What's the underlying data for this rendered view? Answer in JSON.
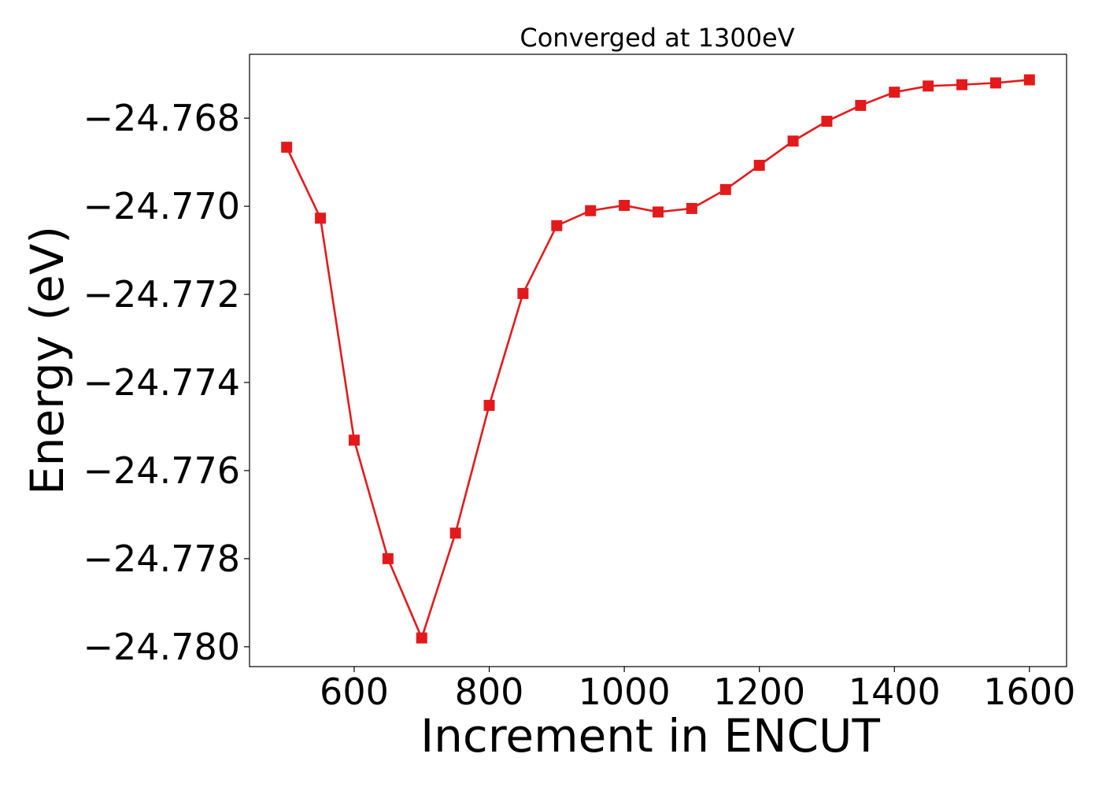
{
  "chart_data": {
    "type": "line",
    "title": "Converged at 1300eV",
    "xlabel": "Increment in ENCUT",
    "ylabel": "Energy (eV)",
    "xlim": [
      445,
      1655
    ],
    "ylim": [
      -24.78045,
      -24.76655
    ],
    "xticks": [
      600,
      800,
      1000,
      1200,
      1400,
      1600
    ],
    "xtick_labels": [
      "600",
      "800",
      "1000",
      "1200",
      "1400",
      "1600"
    ],
    "yticks": [
      -24.768,
      -24.77,
      -24.772,
      -24.774,
      -24.776,
      -24.778,
      -24.78
    ],
    "ytick_labels": [
      "−24.768",
      "−24.770",
      "−24.772",
      "−24.774",
      "−24.776",
      "−24.778",
      "−24.780"
    ],
    "grid": false,
    "color": "#e31a1c",
    "marker": "square",
    "x": [
      500,
      550,
      600,
      650,
      700,
      750,
      800,
      850,
      900,
      950,
      1000,
      1050,
      1100,
      1150,
      1200,
      1250,
      1300,
      1350,
      1400,
      1450,
      1500,
      1550,
      1600
    ],
    "y": [
      -24.76866,
      -24.77027,
      -24.77531,
      -24.778,
      -24.7798,
      -24.77742,
      -24.77452,
      -24.77198,
      -24.77044,
      -24.7701,
      -24.76998,
      -24.77013,
      -24.77005,
      -24.76962,
      -24.76907,
      -24.76852,
      -24.76807,
      -24.76771,
      -24.76741,
      -24.76727,
      -24.76724,
      -24.7672,
      -24.76713
    ]
  }
}
